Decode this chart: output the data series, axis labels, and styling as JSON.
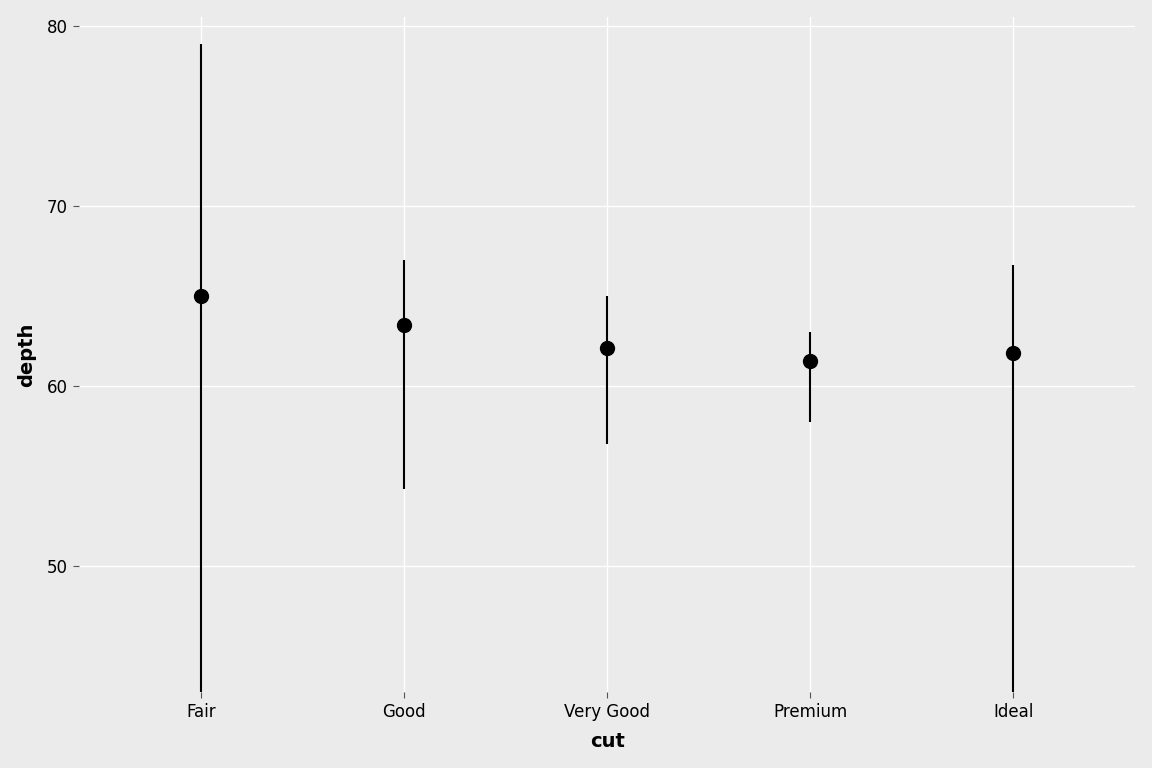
{
  "categories": [
    "Fair",
    "Good",
    "Very Good",
    "Premium",
    "Ideal"
  ],
  "min_depth": [
    43.0,
    54.3,
    56.8,
    58.0,
    43.0
  ],
  "max_depth": [
    79.0,
    67.0,
    65.0,
    63.0,
    66.7
  ],
  "median_depth": [
    65.0,
    63.4,
    62.1,
    61.4,
    61.8
  ],
  "line_color": "#000000",
  "point_color": "#000000",
  "background_color": "#EBEBEB",
  "grid_color": "#FFFFFF",
  "xlabel": "cut",
  "ylabel": "depth",
  "ylim_low": 43.0,
  "ylim_high": 80.5,
  "yticks": [
    50,
    60,
    70,
    80
  ],
  "axis_label_fontsize": 14,
  "tick_fontsize": 12,
  "line_width": 1.5,
  "point_size": 100
}
